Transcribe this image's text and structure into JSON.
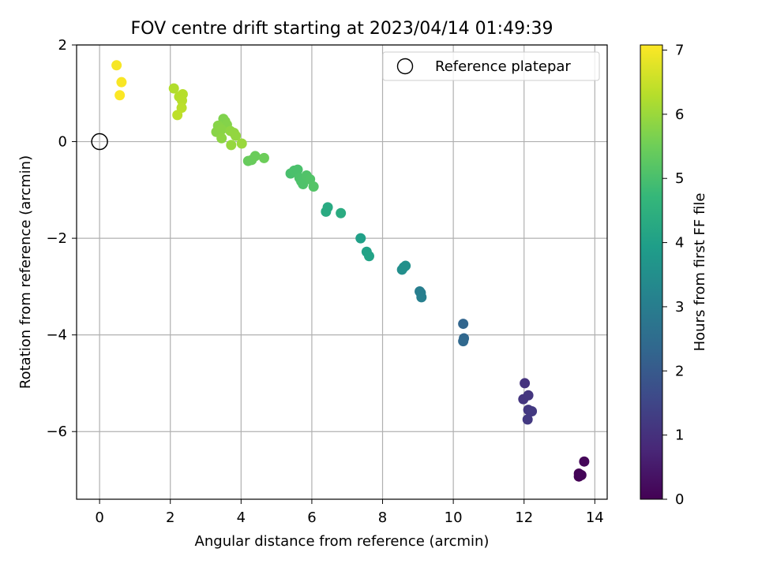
{
  "chart_data": {
    "type": "scatter",
    "title": "FOV centre drift starting at 2023/04/14 01:49:39",
    "xlabel": "Angular distance from reference (arcmin)",
    "ylabel": "Rotation from reference (arcmin)",
    "xlim": [
      -0.65,
      14.35
    ],
    "ylim": [
      -7.4,
      2.0
    ],
    "xticks": [
      0,
      2,
      4,
      6,
      8,
      10,
      12,
      14
    ],
    "yticks": [
      -6,
      -4,
      -2,
      0,
      2
    ],
    "xtick_labels": [
      "0",
      "2",
      "4",
      "6",
      "8",
      "10",
      "12",
      "14"
    ],
    "ytick_labels": [
      "−6",
      "−4",
      "−2",
      "0",
      "2"
    ],
    "grid": true,
    "legend": {
      "position": "top-right",
      "entries": [
        "Reference platepar"
      ]
    },
    "reference_point": {
      "x": 0,
      "y": 0,
      "label": "Reference platepar"
    },
    "colorbar": {
      "label": "Hours from first FF file",
      "min": 0,
      "max": 7.08,
      "ticks": [
        0,
        1,
        2,
        3,
        4,
        5,
        6,
        7
      ],
      "tick_labels": [
        "0",
        "1",
        "2",
        "3",
        "4",
        "5",
        "6",
        "7"
      ],
      "colormap": "viridis"
    },
    "colormap_stops": [
      "#440154",
      "#482878",
      "#3e4989",
      "#31688e",
      "#26828e",
      "#1f9e89",
      "#35b779",
      "#6ece58",
      "#b5de2b",
      "#fde725"
    ],
    "points": [
      {
        "x": 13.55,
        "y": -6.93,
        "c": 0.02
      },
      {
        "x": 13.55,
        "y": -6.87,
        "c": 0.05
      },
      {
        "x": 13.62,
        "y": -6.9,
        "c": 0.08
      },
      {
        "x": 13.7,
        "y": -6.62,
        "c": 0.12
      },
      {
        "x": 12.02,
        "y": -5.0,
        "c": 1.05
      },
      {
        "x": 11.98,
        "y": -5.33,
        "c": 1.1
      },
      {
        "x": 12.12,
        "y": -5.25,
        "c": 1.12
      },
      {
        "x": 12.12,
        "y": -5.55,
        "c": 1.15
      },
      {
        "x": 12.22,
        "y": -5.58,
        "c": 1.18
      },
      {
        "x": 12.1,
        "y": -5.75,
        "c": 1.2
      },
      {
        "x": 10.28,
        "y": -3.77,
        "c": 2.3
      },
      {
        "x": 10.3,
        "y": -4.07,
        "c": 2.35
      },
      {
        "x": 10.28,
        "y": -4.13,
        "c": 2.38
      },
      {
        "x": 9.05,
        "y": -3.1,
        "c": 3.0
      },
      {
        "x": 9.08,
        "y": -3.13,
        "c": 3.02
      },
      {
        "x": 9.1,
        "y": -3.22,
        "c": 3.05
      },
      {
        "x": 8.55,
        "y": -2.65,
        "c": 3.5
      },
      {
        "x": 8.6,
        "y": -2.6,
        "c": 3.52
      },
      {
        "x": 8.65,
        "y": -2.57,
        "c": 3.55
      },
      {
        "x": 7.38,
        "y": -2.0,
        "c": 4.0
      },
      {
        "x": 7.55,
        "y": -2.28,
        "c": 4.05
      },
      {
        "x": 7.62,
        "y": -2.37,
        "c": 4.08
      },
      {
        "x": 6.45,
        "y": -1.36,
        "c": 4.3
      },
      {
        "x": 6.4,
        "y": -1.45,
        "c": 4.32
      },
      {
        "x": 6.82,
        "y": -1.48,
        "c": 4.35
      },
      {
        "x": 5.4,
        "y": -0.66,
        "c": 5.0
      },
      {
        "x": 5.5,
        "y": -0.6,
        "c": 5.02
      },
      {
        "x": 5.6,
        "y": -0.58,
        "c": 5.03
      },
      {
        "x": 5.65,
        "y": -0.75,
        "c": 5.05
      },
      {
        "x": 5.7,
        "y": -0.82,
        "c": 5.06
      },
      {
        "x": 5.75,
        "y": -0.88,
        "c": 5.08
      },
      {
        "x": 5.85,
        "y": -0.7,
        "c": 5.1
      },
      {
        "x": 5.95,
        "y": -0.78,
        "c": 5.12
      },
      {
        "x": 6.05,
        "y": -0.93,
        "c": 5.15
      },
      {
        "x": 4.2,
        "y": -0.4,
        "c": 5.4
      },
      {
        "x": 4.3,
        "y": -0.38,
        "c": 5.42
      },
      {
        "x": 4.4,
        "y": -0.3,
        "c": 5.45
      },
      {
        "x": 4.65,
        "y": -0.34,
        "c": 5.48
      },
      {
        "x": 3.5,
        "y": 0.47,
        "c": 5.7
      },
      {
        "x": 3.55,
        "y": 0.42,
        "c": 5.72
      },
      {
        "x": 3.6,
        "y": 0.35,
        "c": 5.75
      },
      {
        "x": 3.35,
        "y": 0.33,
        "c": 5.78
      },
      {
        "x": 3.3,
        "y": 0.2,
        "c": 5.8
      },
      {
        "x": 3.45,
        "y": 0.25,
        "c": 5.82
      },
      {
        "x": 3.45,
        "y": 0.07,
        "c": 5.85
      },
      {
        "x": 3.7,
        "y": 0.22,
        "c": 5.88
      },
      {
        "x": 3.8,
        "y": 0.18,
        "c": 5.9
      },
      {
        "x": 3.85,
        "y": 0.12,
        "c": 5.92
      },
      {
        "x": 3.72,
        "y": -0.07,
        "c": 5.95
      },
      {
        "x": 4.02,
        "y": -0.04,
        "c": 5.98
      },
      {
        "x": 2.1,
        "y": 1.1,
        "c": 6.25
      },
      {
        "x": 2.25,
        "y": 0.93,
        "c": 6.28
      },
      {
        "x": 2.35,
        "y": 0.98,
        "c": 6.3
      },
      {
        "x": 2.33,
        "y": 0.85,
        "c": 6.32
      },
      {
        "x": 2.32,
        "y": 0.7,
        "c": 6.35
      },
      {
        "x": 2.2,
        "y": 0.55,
        "c": 6.38
      },
      {
        "x": 0.48,
        "y": 1.58,
        "c": 7.0
      },
      {
        "x": 0.62,
        "y": 1.23,
        "c": 7.03
      },
      {
        "x": 0.57,
        "y": 0.96,
        "c": 7.06
      }
    ]
  }
}
